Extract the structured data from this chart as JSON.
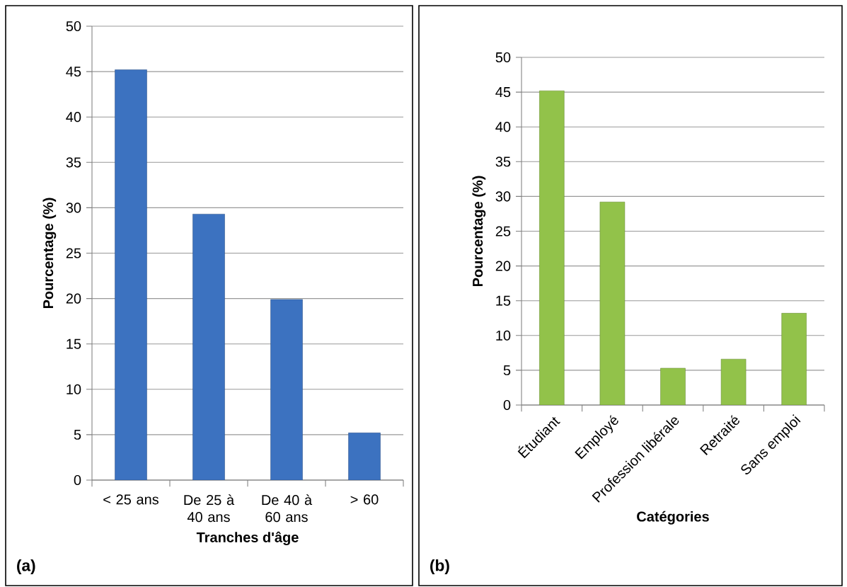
{
  "chart_data": [
    {
      "type": "bar",
      "categories": [
        "< 25 ans",
        "De 25 à 40 ans",
        "De 40 à 60 ans",
        "> 60"
      ],
      "values": [
        45.2,
        29.3,
        19.9,
        5.2
      ],
      "color": "#3c72c0",
      "xlabel": "Tranches d'âge",
      "ylabel": "Pourcentage (%)",
      "ylim": [
        0,
        50
      ],
      "yticks": [
        0,
        5,
        10,
        15,
        20,
        25,
        30,
        35,
        40,
        45,
        50
      ],
      "grid": "y",
      "annotations": [
        "(a)"
      ]
    },
    {
      "type": "bar",
      "categories": [
        "Étudiant",
        "Employé",
        "Profession libérale",
        "Retraité",
        "Sans emploi"
      ],
      "values": [
        45.2,
        29.2,
        5.3,
        6.6,
        13.2
      ],
      "color": "#92c24a",
      "xlabel": "Catégories",
      "ylabel": "Pourcentage (%)",
      "ylim": [
        0,
        50
      ],
      "yticks": [
        0,
        5,
        10,
        15,
        20,
        25,
        30,
        35,
        40,
        45,
        50
      ],
      "grid": "y",
      "annotations": [
        "(b)"
      ]
    }
  ]
}
